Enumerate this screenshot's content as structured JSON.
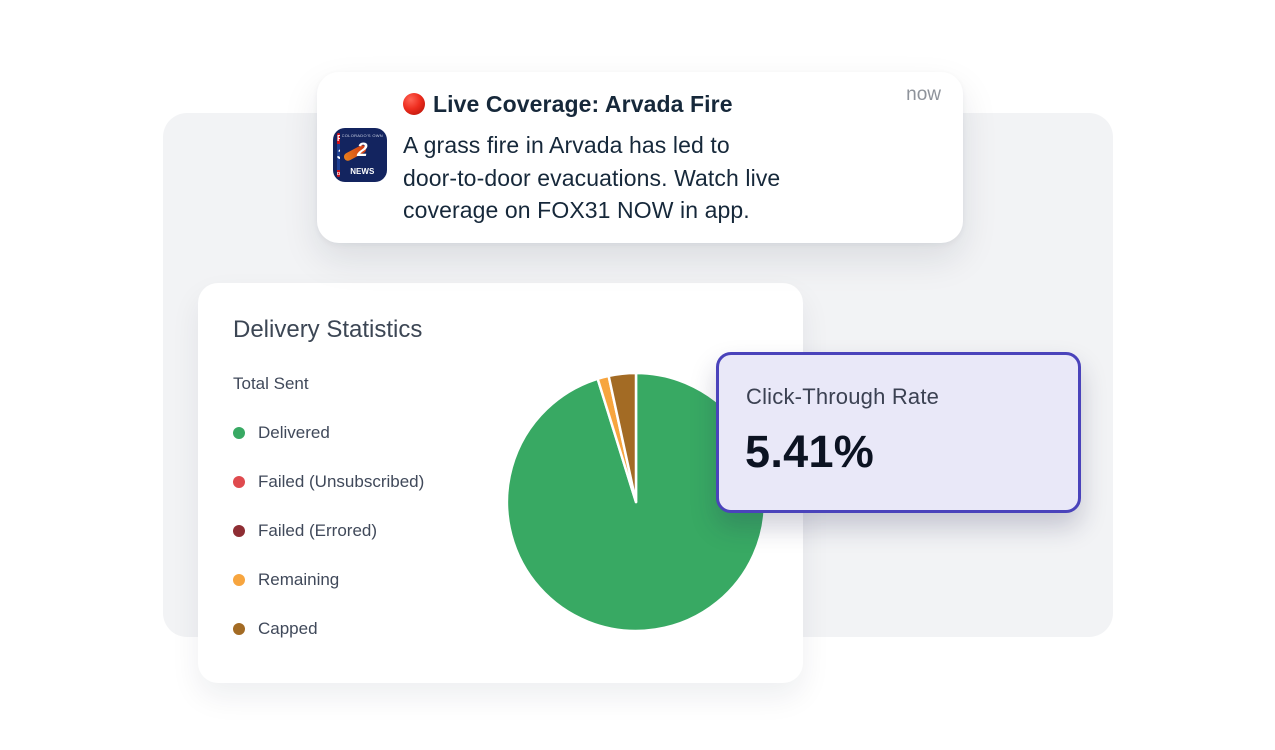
{
  "colors": {
    "page_background": "#ffffff",
    "panel_background": "#f2f3f5",
    "card_background": "#ffffff",
    "ctr_background": "#e9e8f8",
    "ctr_border": "#4a43bb",
    "notification_text": "#16283a",
    "muted_text": "#8e939b"
  },
  "notification": {
    "timestamp": "now",
    "title": "Live Coverage: Arvada Fire",
    "title_emoji": "red-circle",
    "body_lines": [
      "A grass fire in Arvada has led to",
      "door-to-door evacuations. Watch live",
      "coverage on FOX31 NOW in app."
    ],
    "app_icon": {
      "station": "FOX31 Denver / Channel 2 News",
      "fox": "FOX",
      "number": "31",
      "city": "DENVER",
      "tagline": "COLORADO'S OWN",
      "channel": "2",
      "news": "NEWS"
    }
  },
  "stats_card": {
    "title": "Delivery Statistics",
    "subtitle": "Total Sent",
    "legend": [
      {
        "label": "Delivered",
        "color": "#38a963"
      },
      {
        "label": "Failed (Unsubscribed)",
        "color": "#df4a4e"
      },
      {
        "label": "Failed (Errored)",
        "color": "#8e2d33"
      },
      {
        "label": "Remaining",
        "color": "#f7a53f"
      },
      {
        "label": "Capped",
        "color": "#a36b24"
      }
    ]
  },
  "chart_data": {
    "type": "pie",
    "title": "Delivery Statistics — Total Sent",
    "categories": [
      "Delivered",
      "Failed (Unsubscribed)",
      "Failed (Errored)",
      "Remaining",
      "Capped"
    ],
    "values": [
      95.2,
      0,
      0,
      1.4,
      3.4
    ],
    "unit": "percent of total sent (estimated from arc angles)",
    "colors": [
      "#38a963",
      "#df4a4e",
      "#8e2d33",
      "#f7a53f",
      "#a36b24"
    ],
    "start_angle": "12 o'clock",
    "direction": "clockwise",
    "slice_gap_stroke": "#ffffff",
    "legend_position": "left"
  },
  "ctr_card": {
    "label": "Click-Through Rate",
    "value": "5.41%"
  }
}
